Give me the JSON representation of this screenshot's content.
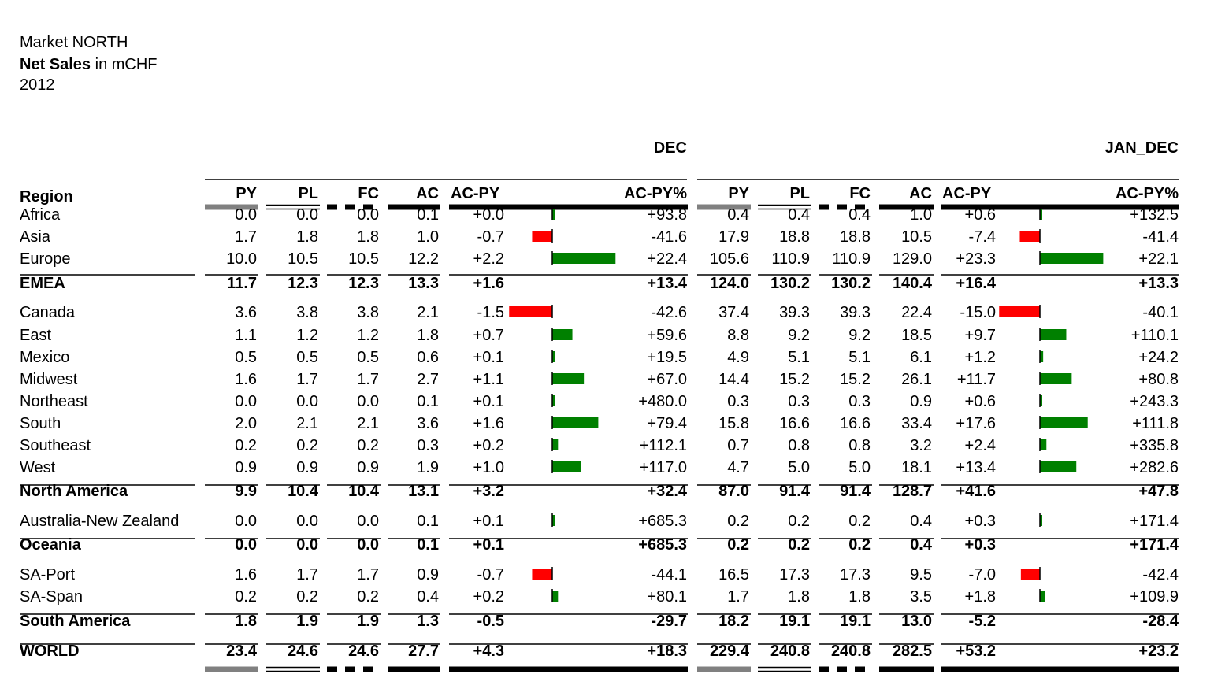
{
  "header": {
    "market": "Market NORTH",
    "measure_bold": "Net Sales",
    "measure_rest": " in mCHF",
    "year": "2012"
  },
  "chart_data": {
    "type": "table",
    "periods": [
      "DEC",
      "JAN_DEC"
    ],
    "row_header": "Region",
    "columns": [
      "PY",
      "PL",
      "FC",
      "AC",
      "AC-PY",
      "AC-PY%"
    ],
    "colors": {
      "positive": "#008000",
      "negative": "#ff0000",
      "py": "#808080",
      "ac": "#000000"
    },
    "rows": [
      {
        "label": "Africa",
        "total": false,
        "dec": {
          "py": "0.0",
          "pl": "0.0",
          "fc": "0.0",
          "ac": "0.1",
          "acpy": "+0.0",
          "acpy_value": 0.0,
          "pct": "+93.8"
        },
        "ytd": {
          "py": "0.4",
          "pl": "0.4",
          "fc": "0.4",
          "ac": "1.0",
          "acpy": "+0.6",
          "acpy_value": 0.6,
          "pct": "+132.5"
        }
      },
      {
        "label": "Asia",
        "total": false,
        "dec": {
          "py": "1.7",
          "pl": "1.8",
          "fc": "1.8",
          "ac": "1.0",
          "acpy": "-0.7",
          "acpy_value": -0.7,
          "pct": "-41.6"
        },
        "ytd": {
          "py": "17.9",
          "pl": "18.8",
          "fc": "18.8",
          "ac": "10.5",
          "acpy": "-7.4",
          "acpy_value": -7.4,
          "pct": "-41.4"
        }
      },
      {
        "label": "Europe",
        "total": false,
        "dec": {
          "py": "10.0",
          "pl": "10.5",
          "fc": "10.5",
          "ac": "12.2",
          "acpy": "+2.2",
          "acpy_value": 2.2,
          "pct": "+22.4"
        },
        "ytd": {
          "py": "105.6",
          "pl": "110.9",
          "fc": "110.9",
          "ac": "129.0",
          "acpy": "+23.3",
          "acpy_value": 23.3,
          "pct": "+22.1"
        }
      },
      {
        "label": "EMEA",
        "total": true,
        "dec": {
          "py": "11.7",
          "pl": "12.3",
          "fc": "12.3",
          "ac": "13.3",
          "acpy": "+1.6",
          "pct": "+13.4"
        },
        "ytd": {
          "py": "124.0",
          "pl": "130.2",
          "fc": "130.2",
          "ac": "140.4",
          "acpy": "+16.4",
          "pct": "+13.3"
        }
      },
      {
        "label": "Canada",
        "total": false,
        "dec": {
          "py": "3.6",
          "pl": "3.8",
          "fc": "3.8",
          "ac": "2.1",
          "acpy": "-1.5",
          "acpy_value": -1.5,
          "pct": "-42.6"
        },
        "ytd": {
          "py": "37.4",
          "pl": "39.3",
          "fc": "39.3",
          "ac": "22.4",
          "acpy": "-15.0",
          "acpy_value": -15.0,
          "pct": "-40.1"
        }
      },
      {
        "label": "East",
        "total": false,
        "dec": {
          "py": "1.1",
          "pl": "1.2",
          "fc": "1.2",
          "ac": "1.8",
          "acpy": "+0.7",
          "acpy_value": 0.7,
          "pct": "+59.6"
        },
        "ytd": {
          "py": "8.8",
          "pl": "9.2",
          "fc": "9.2",
          "ac": "18.5",
          "acpy": "+9.7",
          "acpy_value": 9.7,
          "pct": "+110.1"
        }
      },
      {
        "label": "Mexico",
        "total": false,
        "dec": {
          "py": "0.5",
          "pl": "0.5",
          "fc": "0.5",
          "ac": "0.6",
          "acpy": "+0.1",
          "acpy_value": 0.1,
          "pct": "+19.5"
        },
        "ytd": {
          "py": "4.9",
          "pl": "5.1",
          "fc": "5.1",
          "ac": "6.1",
          "acpy": "+1.2",
          "acpy_value": 1.2,
          "pct": "+24.2"
        }
      },
      {
        "label": "Midwest",
        "total": false,
        "dec": {
          "py": "1.6",
          "pl": "1.7",
          "fc": "1.7",
          "ac": "2.7",
          "acpy": "+1.1",
          "acpy_value": 1.1,
          "pct": "+67.0"
        },
        "ytd": {
          "py": "14.4",
          "pl": "15.2",
          "fc": "15.2",
          "ac": "26.1",
          "acpy": "+11.7",
          "acpy_value": 11.7,
          "pct": "+80.8"
        }
      },
      {
        "label": "Northeast",
        "total": false,
        "dec": {
          "py": "0.0",
          "pl": "0.0",
          "fc": "0.0",
          "ac": "0.1",
          "acpy": "+0.1",
          "acpy_value": 0.1,
          "pct": "+480.0"
        },
        "ytd": {
          "py": "0.3",
          "pl": "0.3",
          "fc": "0.3",
          "ac": "0.9",
          "acpy": "+0.6",
          "acpy_value": 0.6,
          "pct": "+243.3"
        }
      },
      {
        "label": "South",
        "total": false,
        "dec": {
          "py": "2.0",
          "pl": "2.1",
          "fc": "2.1",
          "ac": "3.6",
          "acpy": "+1.6",
          "acpy_value": 1.6,
          "pct": "+79.4"
        },
        "ytd": {
          "py": "15.8",
          "pl": "16.6",
          "fc": "16.6",
          "ac": "33.4",
          "acpy": "+17.6",
          "acpy_value": 17.6,
          "pct": "+111.8"
        }
      },
      {
        "label": "Southeast",
        "total": false,
        "dec": {
          "py": "0.2",
          "pl": "0.2",
          "fc": "0.2",
          "ac": "0.3",
          "acpy": "+0.2",
          "acpy_value": 0.2,
          "pct": "+112.1"
        },
        "ytd": {
          "py": "0.7",
          "pl": "0.8",
          "fc": "0.8",
          "ac": "3.2",
          "acpy": "+2.4",
          "acpy_value": 2.4,
          "pct": "+335.8"
        }
      },
      {
        "label": "West",
        "total": false,
        "dec": {
          "py": "0.9",
          "pl": "0.9",
          "fc": "0.9",
          "ac": "1.9",
          "acpy": "+1.0",
          "acpy_value": 1.0,
          "pct": "+117.0"
        },
        "ytd": {
          "py": "4.7",
          "pl": "5.0",
          "fc": "5.0",
          "ac": "18.1",
          "acpy": "+13.4",
          "acpy_value": 13.4,
          "pct": "+282.6"
        }
      },
      {
        "label": "North America",
        "total": true,
        "dec": {
          "py": "9.9",
          "pl": "10.4",
          "fc": "10.4",
          "ac": "13.1",
          "acpy": "+3.2",
          "pct": "+32.4"
        },
        "ytd": {
          "py": "87.0",
          "pl": "91.4",
          "fc": "91.4",
          "ac": "128.7",
          "acpy": "+41.6",
          "pct": "+47.8"
        }
      },
      {
        "label": "Australia-New Zealand",
        "total": false,
        "dec": {
          "py": "0.0",
          "pl": "0.0",
          "fc": "0.0",
          "ac": "0.1",
          "acpy": "+0.1",
          "acpy_value": 0.1,
          "pct": "+685.3"
        },
        "ytd": {
          "py": "0.2",
          "pl": "0.2",
          "fc": "0.2",
          "ac": "0.4",
          "acpy": "+0.3",
          "acpy_value": 0.3,
          "pct": "+171.4"
        }
      },
      {
        "label": "Oceania",
        "total": true,
        "dec": {
          "py": "0.0",
          "pl": "0.0",
          "fc": "0.0",
          "ac": "0.1",
          "acpy": "+0.1",
          "pct": "+685.3"
        },
        "ytd": {
          "py": "0.2",
          "pl": "0.2",
          "fc": "0.2",
          "ac": "0.4",
          "acpy": "+0.3",
          "pct": "+171.4"
        }
      },
      {
        "label": "SA-Port",
        "total": false,
        "dec": {
          "py": "1.6",
          "pl": "1.7",
          "fc": "1.7",
          "ac": "0.9",
          "acpy": "-0.7",
          "acpy_value": -0.7,
          "pct": "-44.1"
        },
        "ytd": {
          "py": "16.5",
          "pl": "17.3",
          "fc": "17.3",
          "ac": "9.5",
          "acpy": "-7.0",
          "acpy_value": -7.0,
          "pct": "-42.4"
        }
      },
      {
        "label": "SA-Span",
        "total": false,
        "dec": {
          "py": "0.2",
          "pl": "0.2",
          "fc": "0.2",
          "ac": "0.4",
          "acpy": "+0.2",
          "acpy_value": 0.2,
          "pct": "+80.1"
        },
        "ytd": {
          "py": "1.7",
          "pl": "1.8",
          "fc": "1.8",
          "ac": "3.5",
          "acpy": "+1.8",
          "acpy_value": 1.8,
          "pct": "+109.9"
        }
      },
      {
        "label": "South America",
        "total": true,
        "dec": {
          "py": "1.8",
          "pl": "1.9",
          "fc": "1.9",
          "ac": "1.3",
          "acpy": "-0.5",
          "pct": "-29.7"
        },
        "ytd": {
          "py": "18.2",
          "pl": "19.1",
          "fc": "19.1",
          "ac": "13.0",
          "acpy": "-5.2",
          "pct": "-28.4"
        }
      },
      {
        "label": "WORLD",
        "total": true,
        "dec": {
          "py": "23.4",
          "pl": "24.6",
          "fc": "24.6",
          "ac": "27.7",
          "acpy": "+4.3",
          "pct": "+18.3"
        },
        "ytd": {
          "py": "229.4",
          "pl": "240.8",
          "fc": "240.8",
          "ac": "282.5",
          "acpy": "+53.2",
          "pct": "+23.2"
        }
      }
    ]
  }
}
